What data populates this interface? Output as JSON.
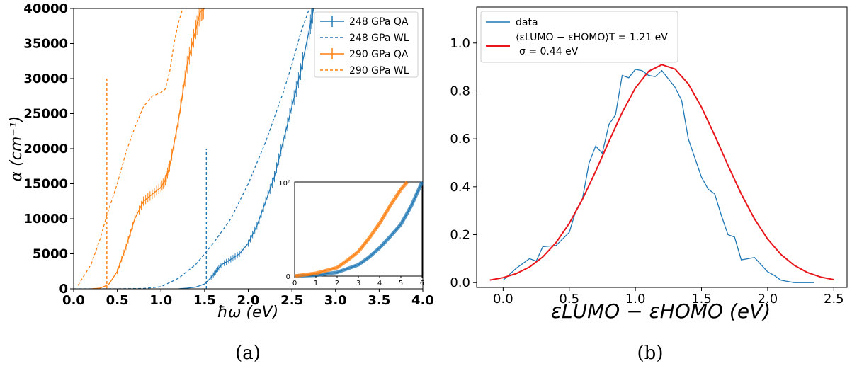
{
  "colors": {
    "blue": "#1f77b4",
    "orange": "#ff7f0e",
    "red": "#e8161b"
  },
  "panel_a": {
    "caption": "(a)",
    "xlabel": "ħω (eV)",
    "ylabel": "α (cm⁻¹)",
    "legend": [
      "248 GPa QA",
      "248 GPa WL",
      "290 GPa QA",
      "290 GPa WL"
    ],
    "inset": {
      "ymax_label": "10⁶",
      "ymin_label": "0"
    }
  },
  "panel_b": {
    "caption": "(b)",
    "xlabel": "εLUMO − εHOMO (eV)",
    "legend": [
      "data",
      "⟨εLUMO − εHOMO⟩T = 1.21 eV",
      "σ = 0.44 eV"
    ]
  },
  "chart_data": [
    {
      "type": "line",
      "xlim": [
        0.0,
        4.0
      ],
      "ylim": [
        0,
        40000
      ],
      "x_ticks": [
        "0.0",
        "0.5",
        "1.0",
        "1.5",
        "2.0",
        "2.5",
        "3.0",
        "3.5",
        "4.0"
      ],
      "y_ticks": [
        "0",
        "5000",
        "10000",
        "15000",
        "20000",
        "25000",
        "30000",
        "35000",
        "40000"
      ],
      "legend_placement": "top-right",
      "series": [
        {
          "name": "248 GPa QA",
          "style": "solid-errorbar",
          "color": "#1f77b4",
          "x": [
            1.2,
            1.3,
            1.4,
            1.5,
            1.55,
            1.6,
            1.65,
            1.7,
            1.8,
            1.9,
            2.0,
            2.1,
            2.2,
            2.3,
            2.4,
            2.5,
            2.6,
            2.7,
            2.75
          ],
          "y": [
            0,
            100,
            250,
            700,
            1300,
            2000,
            2800,
            3500,
            4200,
            5000,
            6500,
            9000,
            12500,
            16000,
            21000,
            26000,
            31000,
            37000,
            40000
          ]
        },
        {
          "name": "248 GPa WL",
          "style": "dashed",
          "color": "#1f77b4",
          "x": [
            0.0,
            0.5,
            0.8,
            1.0,
            1.2,
            1.4,
            1.5,
            1.6,
            1.8,
            2.0,
            2.2,
            2.4,
            2.5,
            2.6,
            2.7
          ],
          "y": [
            0,
            0,
            50,
            300,
            1500,
            3500,
            5000,
            6500,
            10000,
            15000,
            21000,
            28000,
            32000,
            36500,
            40000
          ]
        },
        {
          "name": "290 GPa QA",
          "style": "solid-errorbar",
          "color": "#ff7f0e",
          "x": [
            0.2,
            0.3,
            0.4,
            0.5,
            0.6,
            0.7,
            0.8,
            0.9,
            1.0,
            1.05,
            1.1,
            1.2,
            1.3,
            1.4,
            1.45,
            1.5
          ],
          "y": [
            0,
            100,
            600,
            2500,
            6000,
            10000,
            12500,
            13500,
            14500,
            15500,
            17500,
            24000,
            32000,
            37000,
            39500,
            40000
          ]
        },
        {
          "name": "290 GPa WL",
          "style": "dashed",
          "color": "#ff7f0e",
          "x": [
            0.05,
            0.1,
            0.2,
            0.3,
            0.38,
            0.5,
            0.6,
            0.7,
            0.8,
            0.9,
            1.0,
            1.05,
            1.1,
            1.15,
            1.2,
            1.25
          ],
          "y": [
            500,
            1500,
            3500,
            7000,
            10500,
            15000,
            19500,
            23000,
            26000,
            27500,
            28000,
            28500,
            31000,
            35000,
            38000,
            40000
          ]
        }
      ],
      "vertical_markers": [
        {
          "color": "#ff7f0e",
          "x": 0.38,
          "y_top": 30000,
          "style": "dashed"
        },
        {
          "color": "#1f77b4",
          "x": 1.52,
          "y_top": 20000,
          "style": "dashed"
        }
      ],
      "inset": {
        "xlim": [
          0,
          6
        ],
        "ylim": [
          0,
          1000000
        ],
        "x_ticks": [
          "0",
          "1",
          "2",
          "3",
          "4",
          "5",
          "6"
        ],
        "series": [
          {
            "color": "#1f77b4",
            "x": [
              0,
              1,
              2,
              2.5,
              3,
              3.5,
              4,
              4.5,
              5,
              5.5,
              6
            ],
            "y": [
              0,
              10000,
              40000,
              80000,
              120000,
              200000,
              300000,
              420000,
              550000,
              750000,
              1000000
            ]
          },
          {
            "color": "#ff7f0e",
            "x": [
              0,
              1,
              2,
              2.5,
              3,
              3.5,
              4,
              4.5,
              5,
              5.3
            ],
            "y": [
              0,
              30000,
              90000,
              170000,
              260000,
              400000,
              560000,
              750000,
              920000,
              1000000
            ]
          }
        ]
      }
    },
    {
      "type": "line",
      "xlim": [
        -0.2,
        2.6
      ],
      "ylim": [
        -0.02,
        1.15
      ],
      "x_ticks": [
        "0.0",
        "0.5",
        "1.0",
        "1.5",
        "2.0",
        "2.5"
      ],
      "y_ticks": [
        "0.0",
        "0.2",
        "0.4",
        "0.6",
        "0.8",
        "1.0"
      ],
      "legend_placement": "top-left",
      "series": [
        {
          "name": "data",
          "color": "#1f77b4",
          "x": [
            0.0,
            0.1,
            0.2,
            0.25,
            0.3,
            0.4,
            0.5,
            0.55,
            0.6,
            0.65,
            0.7,
            0.75,
            0.8,
            0.85,
            0.9,
            0.95,
            1.0,
            1.05,
            1.1,
            1.15,
            1.2,
            1.25,
            1.3,
            1.35,
            1.4,
            1.5,
            1.55,
            1.6,
            1.65,
            1.7,
            1.75,
            1.8,
            1.9,
            2.0,
            2.05,
            2.1,
            2.15,
            2.2,
            2.3,
            2.35
          ],
          "y": [
            0.01,
            0.06,
            0.1,
            0.09,
            0.15,
            0.155,
            0.21,
            0.3,
            0.35,
            0.5,
            0.57,
            0.54,
            0.66,
            0.7,
            0.865,
            0.855,
            0.89,
            0.885,
            0.865,
            0.86,
            0.885,
            0.85,
            0.815,
            0.76,
            0.6,
            0.44,
            0.39,
            0.37,
            0.28,
            0.2,
            0.19,
            0.095,
            0.105,
            0.045,
            0.03,
            0.01,
            0.005,
            0.0,
            0.0,
            0.0
          ]
        },
        {
          "name": "⟨εLUMO − εHOMO⟩T = 1.21 eV, σ = 0.44 eV",
          "color": "#e8161b",
          "mean": 1.21,
          "sigma": 0.44,
          "amplitude": 0.91,
          "x_range": [
            -0.1,
            2.5
          ]
        }
      ]
    }
  ]
}
